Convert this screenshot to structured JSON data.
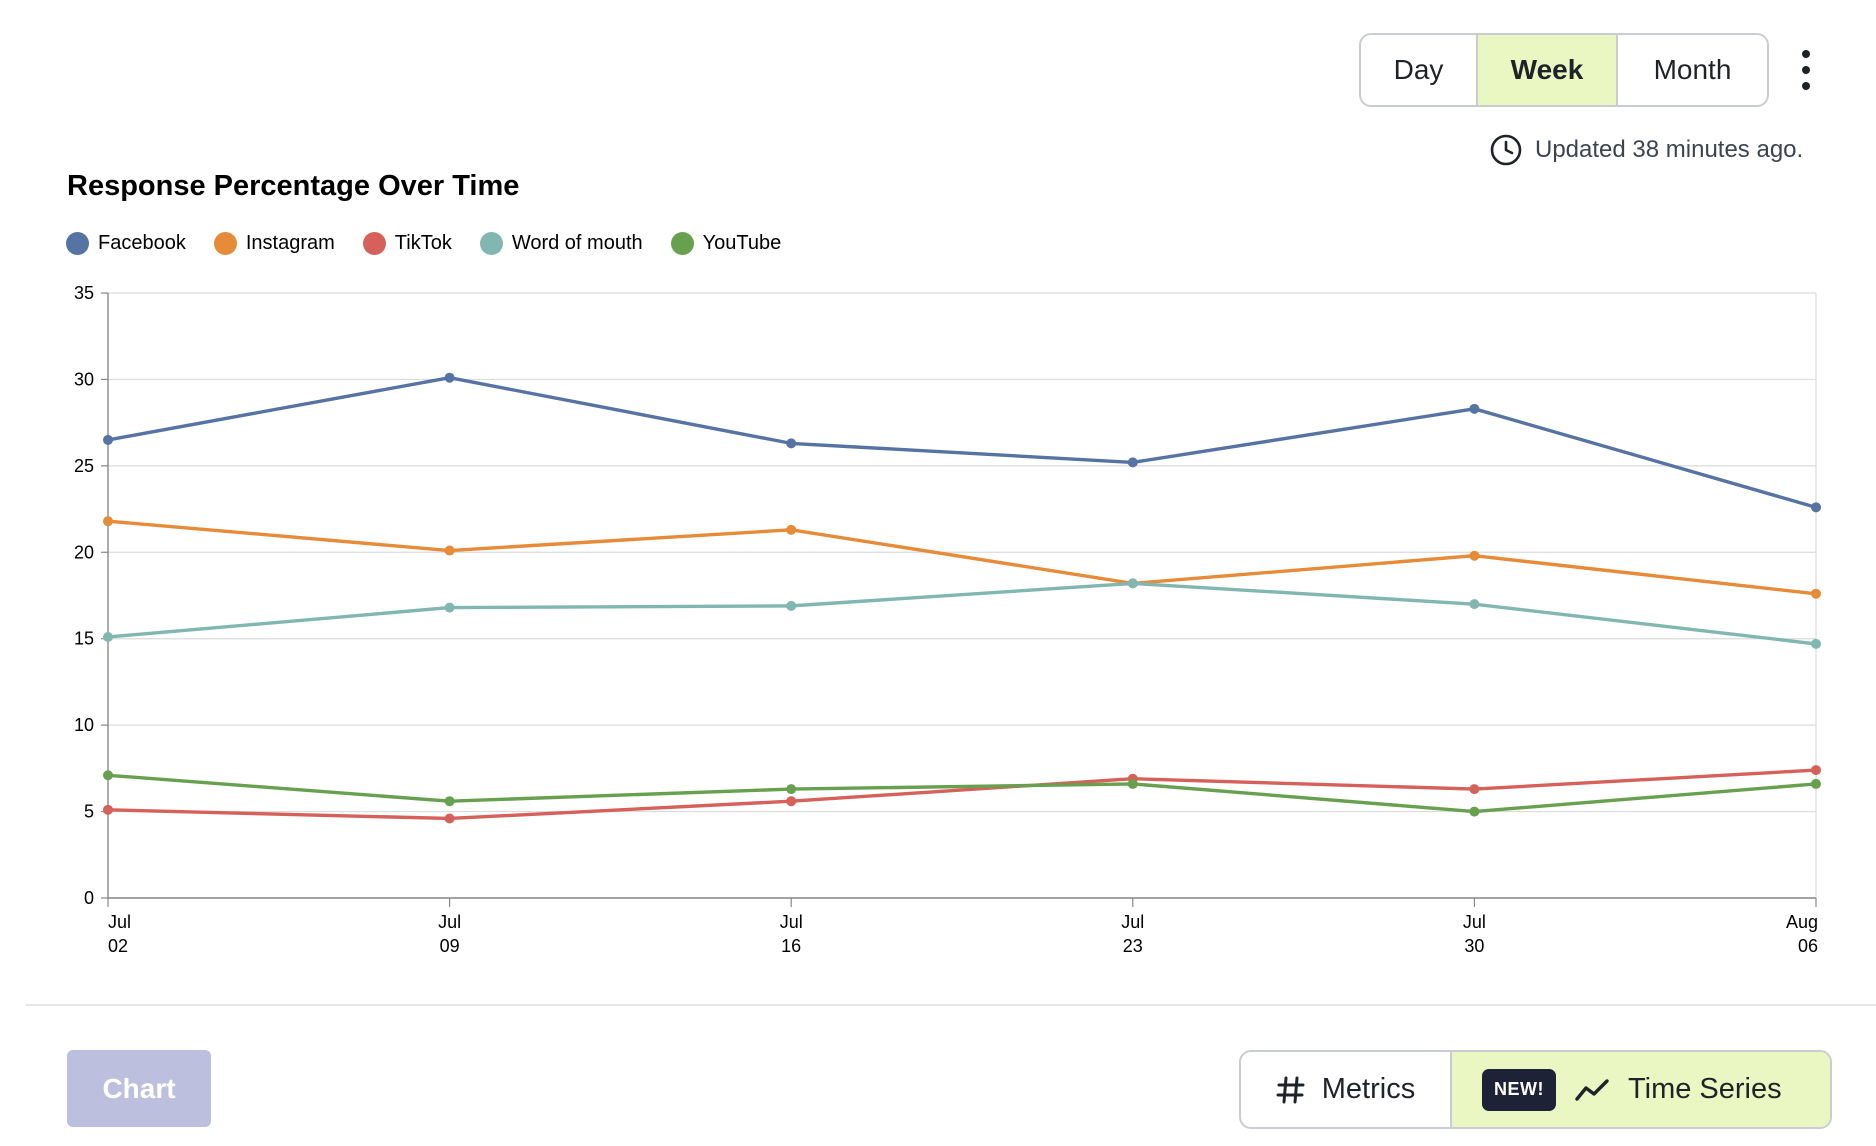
{
  "period_toggle": {
    "options": [
      "Day",
      "Week",
      "Month"
    ],
    "selected": "Week"
  },
  "updated_text": "Updated 38 minutes ago.",
  "chart_data": {
    "type": "line",
    "title": "Response Percentage Over Time",
    "xlabel": "",
    "ylabel": "",
    "categories": [
      "Jul 02",
      "Jul 09",
      "Jul 16",
      "Jul 23",
      "Jul 30",
      "Aug 06"
    ],
    "tick_labels": [
      [
        "Jul",
        "02"
      ],
      [
        "Jul",
        "09"
      ],
      [
        "Jul",
        "16"
      ],
      [
        "Jul",
        "23"
      ],
      [
        "Jul",
        "30"
      ],
      [
        "Aug",
        "06"
      ]
    ],
    "ylim": [
      0,
      35
    ],
    "yticks": [
      0,
      5,
      10,
      15,
      20,
      25,
      30,
      35
    ],
    "grid": true,
    "legend_position": "top-left",
    "series": [
      {
        "name": "Facebook",
        "color": "#5573a3",
        "values": [
          26.5,
          30.1,
          26.3,
          25.2,
          28.3,
          22.6
        ]
      },
      {
        "name": "Instagram",
        "color": "#e68b38",
        "values": [
          21.8,
          20.1,
          21.3,
          18.2,
          19.8,
          17.6
        ]
      },
      {
        "name": "TikTok",
        "color": "#d6605a",
        "values": [
          5.1,
          4.6,
          5.6,
          6.9,
          6.3,
          7.4
        ]
      },
      {
        "name": "Word of mouth",
        "color": "#82b6b1",
        "values": [
          15.1,
          16.8,
          16.9,
          18.2,
          17.0,
          14.7
        ]
      },
      {
        "name": "YouTube",
        "color": "#67a04f",
        "values": [
          7.1,
          5.6,
          6.3,
          6.6,
          5.0,
          6.6
        ]
      }
    ]
  },
  "bottom_bar": {
    "chart_button": "Chart",
    "metrics_label": "Metrics",
    "new_badge": "NEW!",
    "time_series_label": "Time Series"
  }
}
